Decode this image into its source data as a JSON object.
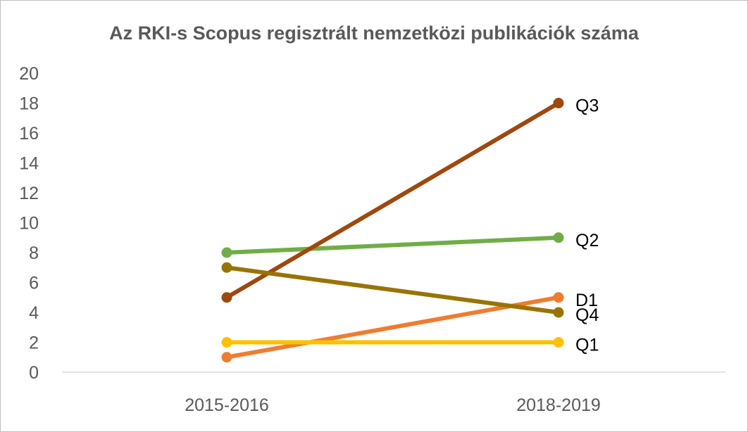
{
  "chart_data": {
    "type": "line",
    "title": "Az RKI-s Scopus regisztrált nemzetközi publikációk száma",
    "categories": [
      "2015-2016",
      "2018-2019"
    ],
    "ylim": [
      0,
      20
    ],
    "yticks": [
      0,
      2,
      4,
      6,
      8,
      10,
      12,
      14,
      16,
      18,
      20
    ],
    "grid": false,
    "legend": "none",
    "series": [
      {
        "name": "D1",
        "values": [
          1,
          5
        ],
        "color": "#ED7D31"
      },
      {
        "name": "Q1",
        "values": [
          2,
          2
        ],
        "color": "#FFC000"
      },
      {
        "name": "Q2",
        "values": [
          8,
          9
        ],
        "color": "#70AD47"
      },
      {
        "name": "Q3",
        "values": [
          5,
          18
        ],
        "color": "#9E480E"
      },
      {
        "name": "Q4",
        "values": [
          7,
          4
        ],
        "color": "#997300"
      }
    ],
    "axis_color": "#d9d9d9",
    "text_color": "#595959"
  }
}
